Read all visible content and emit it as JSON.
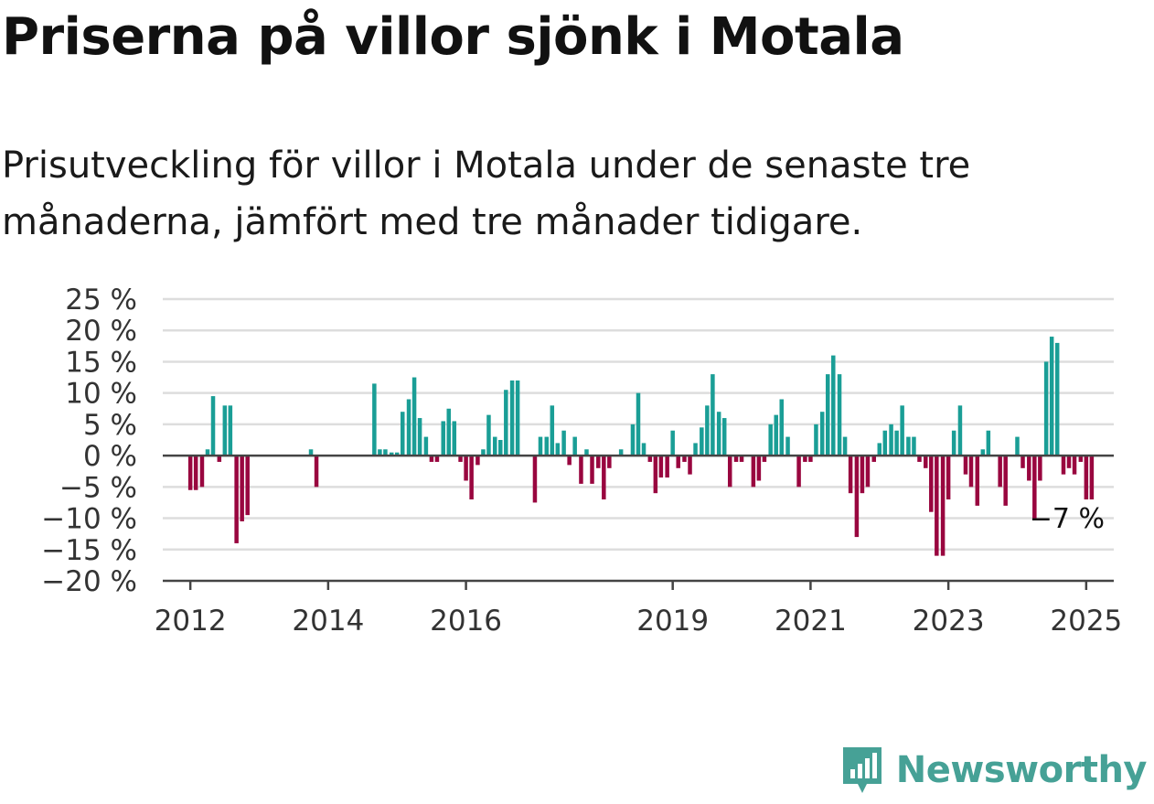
{
  "header": {
    "title": "Priserna på villor sjönk i Motala",
    "subtitle": "Prisutveckling för villor i Motala under de senaste tre månaderna, jämfört med tre månader tidigare."
  },
  "brand": {
    "name": "Newsworthy",
    "logo_icon": "newsworthy-chart-icon",
    "color": "#46a196"
  },
  "colors": {
    "positive": "#1a9e96",
    "negative": "#99063f",
    "grid": "#dddddd",
    "axis": "#444444"
  },
  "chart_data": {
    "type": "bar",
    "title": "Priserna på villor sjönk i Motala",
    "ylabel": "",
    "ylim": [
      -20,
      25
    ],
    "yticks": [
      25,
      20,
      15,
      10,
      5,
      0,
      -5,
      -10,
      -15,
      -20
    ],
    "ytick_labels": [
      "25 %",
      "20 %",
      "15 %",
      "10 %",
      "5 %",
      "0 %",
      "−5 %",
      "−10 %",
      "−15 %",
      "−20 %"
    ],
    "xlim": [
      2011.6,
      2025.4
    ],
    "xticks": [
      2012,
      2014,
      2016,
      2019,
      2021,
      2023,
      2025
    ],
    "xtick_labels": [
      "2012",
      "2014",
      "2016",
      "2019",
      "2021",
      "2023",
      "2025"
    ],
    "grid": true,
    "end_label": "−7 %",
    "series": [
      {
        "x": [
          2012.0,
          2012.08,
          2012.17,
          2012.25,
          2012.33,
          2012.42,
          2012.5,
          2012.58,
          2012.67,
          2012.75,
          2012.83
        ],
        "values": [
          -5.5,
          -5.5,
          -5,
          1,
          9.5,
          -1,
          8,
          8,
          -14,
          -10.5,
          -9.5
        ]
      },
      {
        "x": [
          2013.75,
          2013.83
        ],
        "values": [
          1,
          -5
        ]
      },
      {
        "x": [
          2014.67,
          2014.75,
          2014.83,
          2014.92,
          2015.0,
          2015.08,
          2015.17,
          2015.25,
          2015.33,
          2015.42,
          2015.5,
          2015.58,
          2015.67,
          2015.75,
          2015.83,
          2015.92,
          2016.0,
          2016.08,
          2016.17,
          2016.25,
          2016.33,
          2016.42,
          2016.5,
          2016.58,
          2016.67,
          2016.75,
          2016.83
        ],
        "values": [
          11.5,
          1,
          1,
          0.5,
          0.5,
          7,
          9,
          12.5,
          6,
          3,
          -1,
          -1,
          5.5,
          7.5,
          5.5,
          -1,
          -4,
          -7,
          -1.5,
          1,
          6.5,
          3,
          2.5,
          10.5,
          12,
          12,
          0
        ]
      },
      {
        "x": [
          2017.0,
          2017.08,
          2017.17,
          2017.25,
          2017.33,
          2017.42,
          2017.5,
          2017.58,
          2017.67,
          2017.75,
          2017.83,
          2017.92,
          2018.0,
          2018.08,
          2018.17,
          2018.25,
          2018.33,
          2018.42,
          2018.5,
          2018.58,
          2018.67,
          2018.75,
          2018.83,
          2018.92
        ],
        "values": [
          -7.5,
          3,
          3,
          8,
          2,
          4,
          -1.5,
          3,
          -4.5,
          1,
          -4.5,
          -2,
          -7,
          -2,
          0,
          1,
          0,
          5,
          10,
          2,
          -1,
          -6,
          -3.5,
          -3.5
        ]
      },
      {
        "x": [
          2019.0,
          2019.08,
          2019.17,
          2019.25,
          2019.33,
          2019.42,
          2019.5,
          2019.58,
          2019.67,
          2019.75,
          2019.83,
          2019.92,
          2020.0,
          2020.08,
          2020.17,
          2020.25,
          2020.33,
          2020.42,
          2020.5,
          2020.58,
          2020.67,
          2020.75,
          2020.83,
          2020.92,
          2021.0,
          2021.08,
          2021.17,
          2021.25,
          2021.33,
          2021.42,
          2021.5,
          2021.58,
          2021.67,
          2021.75,
          2021.83,
          2021.92,
          2022.0,
          2022.08,
          2022.17,
          2022.25,
          2022.33,
          2022.42,
          2022.5,
          2022.58,
          2022.67,
          2022.75,
          2022.83,
          2022.92,
          2023.0,
          2023.08,
          2023.17,
          2023.25,
          2023.33,
          2023.42,
          2023.5,
          2023.58,
          2023.67,
          2023.75,
          2023.83,
          2023.92,
          2024.0,
          2024.08,
          2024.17,
          2024.25,
          2024.33,
          2024.42,
          2024.5,
          2024.58,
          2024.67,
          2024.75,
          2024.83,
          2024.92,
          2025.0,
          2025.08
        ],
        "values": [
          4,
          -2,
          -1,
          -3,
          2,
          4.5,
          8,
          13,
          7,
          6,
          -5,
          -1,
          -1,
          0,
          -5,
          -4,
          -1,
          5,
          6.5,
          9,
          3,
          0,
          -5,
          -1,
          -1,
          5,
          7,
          13,
          16,
          13,
          3,
          -6,
          -13,
          -6,
          -5,
          -1,
          2,
          4,
          5,
          4,
          8,
          3,
          3,
          -1,
          -2,
          -9,
          -16,
          -16,
          -7,
          4,
          8,
          -3,
          -5,
          -8,
          1,
          4,
          0,
          -5,
          -8,
          0,
          3,
          -2,
          -4,
          -10,
          -4,
          15,
          19,
          18,
          -3,
          -2,
          -3,
          -1,
          -7,
          -7
        ]
      }
    ]
  }
}
